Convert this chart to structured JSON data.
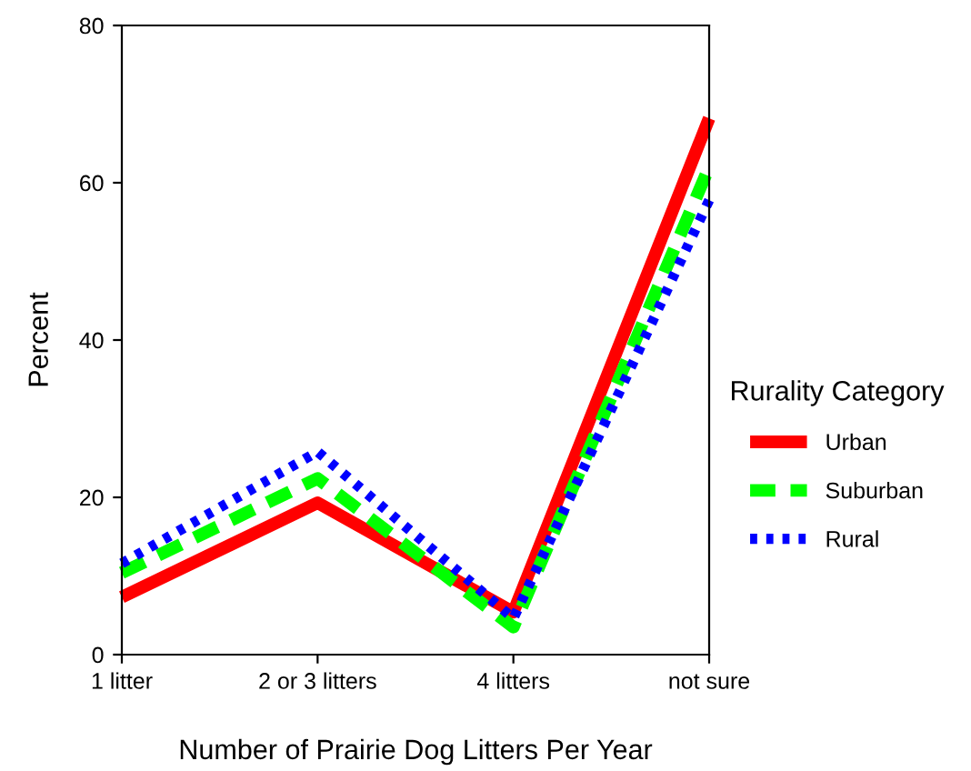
{
  "chart_data": {
    "type": "line",
    "xlabel": "Number of Prairie Dog Litters Per Year",
    "ylabel": "Percent",
    "legend_title": "Rurality Category",
    "categories": [
      "1 litter",
      "2 or 3 litters",
      "4 litters",
      "not sure"
    ],
    "series": [
      {
        "name": "Urban",
        "color": "#ff0000",
        "line_style": "solid",
        "values": [
          7.3,
          19.3,
          5.4,
          68.2
        ]
      },
      {
        "name": "Suburban",
        "color": "#00ff00",
        "line_style": "dashed",
        "values": [
          10.4,
          22.4,
          3.5,
          62
        ]
      },
      {
        "name": "Rural",
        "color": "#0000ff",
        "line_style": "dotted",
        "values": [
          11.6,
          25.8,
          4.6,
          57.8
        ]
      }
    ],
    "ylim": [
      0,
      80
    ],
    "yticks": [
      0,
      20,
      40,
      60,
      80
    ],
    "grid": false,
    "legend": "right",
    "marker": "none"
  }
}
